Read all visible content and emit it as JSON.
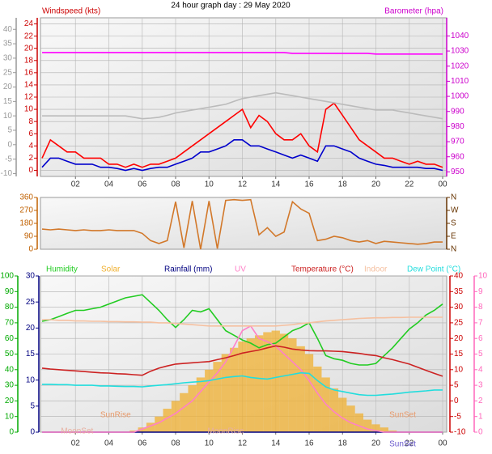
{
  "title": "24 hour graph day : 29 May 2020",
  "chart_data": [
    {
      "type": "line",
      "ylabel": "Windspeed (kts)",
      "y2label": "Barometer (hpa)",
      "x": [
        0,
        0.5,
        1,
        1.5,
        2,
        2.5,
        3,
        3.5,
        4,
        4.5,
        5,
        5.5,
        6,
        6.5,
        7,
        7.5,
        8,
        8.5,
        9,
        9.5,
        10,
        10.5,
        11,
        11.5,
        12,
        12.5,
        13,
        13.5,
        14,
        14.5,
        15,
        15.5,
        16,
        16.5,
        17,
        17.5,
        18,
        18.5,
        19,
        19.5,
        20,
        20.5,
        21,
        21.5,
        22,
        22.5,
        23,
        23.5,
        24
      ],
      "xlim": [
        0,
        24
      ],
      "xticks": [
        {
          "value": 2,
          "label": "02"
        },
        {
          "value": 4,
          "label": "04"
        },
        {
          "value": 6,
          "label": "06"
        },
        {
          "value": 8,
          "label": "08"
        },
        10,
        12,
        14,
        16,
        18,
        20,
        22,
        {
          "value": 24,
          "label": "00"
        }
      ],
      "ylim": [
        -1,
        25
      ],
      "yticks": [
        0,
        2,
        4,
        6,
        8,
        10,
        12,
        14,
        16,
        18,
        20,
        22,
        24
      ],
      "y3lim": [
        -11,
        44
      ],
      "y3ticks": [
        -10,
        -5,
        0,
        5,
        10,
        15,
        20,
        25,
        30,
        35,
        40
      ],
      "y2lim": [
        947,
        1052
      ],
      "y2ticks": [
        950,
        960,
        970,
        980,
        990,
        1000,
        1010,
        1020,
        1030,
        1040
      ],
      "axis_colors": {
        "y": "#cc0000",
        "y3": "#999999",
        "y2": "#cc00cc"
      },
      "grid": true,
      "series": [
        {
          "color": "#ff0000",
          "values": [
            2,
            5,
            4,
            3,
            3,
            2,
            2,
            2,
            1,
            1,
            0.5,
            1,
            0.5,
            1,
            1,
            1.5,
            2,
            3,
            4,
            5,
            6,
            7,
            8,
            9,
            10,
            7,
            9,
            8,
            6,
            5,
            5,
            6,
            4,
            3,
            10,
            11,
            9,
            7,
            5,
            4,
            3,
            2,
            2,
            1.5,
            1,
            1.5,
            1,
            1,
            0.5
          ]
        },
        {
          "color": "#0000cc",
          "values": [
            0.5,
            2,
            2,
            1.5,
            1,
            1,
            1,
            0.5,
            0.5,
            0.3,
            0,
            0.3,
            0,
            0.3,
            0.5,
            0.5,
            1,
            1.5,
            2,
            3,
            3,
            3.5,
            4,
            5,
            5,
            4,
            4,
            3.5,
            3,
            2.5,
            2,
            2.5,
            2,
            1.5,
            4,
            4,
            3.5,
            3,
            2,
            1.5,
            1,
            0.8,
            0.5,
            0.5,
            0.5,
            0.5,
            0.3,
            0.3,
            0
          ]
        },
        {
          "color": "#bbbbbb",
          "axis": "y3",
          "values": [
            10,
            10,
            10,
            10,
            10,
            10,
            10,
            10,
            10,
            10,
            10,
            9.5,
            9,
            9.2,
            9.5,
            10.2,
            11,
            11.5,
            12,
            12.5,
            13,
            13.5,
            14,
            15,
            16,
            16.5,
            17,
            17.5,
            18,
            17.5,
            17,
            16.5,
            16,
            15.5,
            15,
            14.5,
            14,
            13.5,
            13,
            12.5,
            12,
            12,
            12,
            11.5,
            11,
            10.5,
            10,
            9.5,
            9
          ]
        },
        {
          "color": "#ff00ff",
          "axis": "y2",
          "values": [
            1029,
            1029,
            1029,
            1029,
            1029,
            1029,
            1029,
            1029,
            1029,
            1029,
            1029,
            1029,
            1029,
            1029,
            1029,
            1029,
            1029,
            1029,
            1029,
            1029,
            1029,
            1029,
            1029,
            1029,
            1029,
            1029,
            1029,
            1029,
            1029,
            1029,
            1028.5,
            1028.5,
            1028.5,
            1028.5,
            1028.5,
            1028.5,
            1028.5,
            1028.5,
            1028.5,
            1028.5,
            1028,
            1028,
            1028,
            1028,
            1028,
            1028,
            1028,
            1028,
            1028
          ]
        }
      ]
    },
    {
      "type": "line",
      "x": [
        0,
        0.5,
        1,
        1.5,
        2,
        2.5,
        3,
        3.5,
        4,
        4.5,
        5,
        5.5,
        6,
        6.5,
        7,
        7.5,
        8,
        8.5,
        9,
        9.5,
        10,
        10.5,
        11,
        11.5,
        12,
        12.5,
        13,
        13.5,
        14,
        14.5,
        15,
        15.5,
        16,
        16.5,
        17,
        17.5,
        18,
        18.5,
        19,
        19.5,
        20,
        20.5,
        21,
        21.5,
        22,
        22.5,
        23,
        23.5,
        24
      ],
      "xlim": [
        0,
        24
      ],
      "ylim": [
        0,
        360
      ],
      "yticks": [
        0,
        90,
        180,
        270,
        360
      ],
      "y2lim": [
        0,
        360
      ],
      "y2ticks": [
        {
          "value": 0,
          "label": "N"
        },
        {
          "value": 90,
          "label": "E"
        },
        {
          "value": 180,
          "label": "S"
        },
        {
          "value": 270,
          "label": "W"
        },
        {
          "value": 360,
          "label": "N"
        }
      ],
      "axis_colors": {
        "y": "#c06000",
        "y2": "#663300"
      },
      "grid": false,
      "series": [
        {
          "color": "#d2782a",
          "values": [
            140,
            135,
            140,
            135,
            130,
            135,
            130,
            130,
            135,
            130,
            130,
            130,
            110,
            60,
            40,
            60,
            330,
            10,
            335,
            0,
            335,
            5,
            340,
            345,
            340,
            345,
            100,
            150,
            90,
            120,
            330,
            280,
            250,
            60,
            70,
            90,
            80,
            60,
            50,
            60,
            40,
            55,
            50,
            45,
            40,
            35,
            40,
            50,
            50
          ]
        }
      ]
    },
    {
      "type": "line",
      "x": [
        0,
        0.5,
        1,
        1.5,
        2,
        2.5,
        3,
        3.5,
        4,
        4.5,
        5,
        5.5,
        6,
        6.5,
        7,
        7.5,
        8,
        8.5,
        9,
        9.5,
        10,
        10.5,
        11,
        11.5,
        12,
        12.5,
        13,
        13.5,
        14,
        14.5,
        15,
        15.5,
        16,
        16.5,
        17,
        17.5,
        18,
        18.5,
        19,
        19.5,
        20,
        20.5,
        21,
        21.5,
        22,
        22.5,
        23,
        23.5,
        24
      ],
      "xlim": [
        0,
        24
      ],
      "xticks": [
        {
          "value": 2,
          "label": "02"
        },
        {
          "value": 4,
          "label": "04"
        },
        {
          "value": 6,
          "label": "06"
        },
        {
          "value": 8,
          "label": "08"
        },
        10,
        12,
        14,
        16,
        18,
        20,
        22,
        {
          "value": 24,
          "label": "00"
        }
      ],
      "ylim": [
        0,
        100
      ],
      "yticks": [
        0,
        10,
        20,
        30,
        40,
        50,
        60,
        70,
        80,
        90,
        100
      ],
      "y4lim": [
        0,
        30
      ],
      "y4ticks": [
        0,
        5,
        10,
        15,
        20,
        25,
        30
      ],
      "y2lim": [
        -10,
        40
      ],
      "y2ticks": [
        -10,
        -5,
        0,
        5,
        10,
        15,
        20,
        25,
        30,
        35,
        40
      ],
      "y3lim": [
        0,
        10
      ],
      "y3ticks": [
        0,
        1,
        2,
        3,
        4,
        5,
        6,
        7,
        8,
        9,
        10
      ],
      "axis_colors": {
        "y": "#00aa00",
        "y4": "#000080",
        "y2": "#cc0000",
        "y3": "#ff66bb"
      },
      "grid": true,
      "series": [
        {
          "name": "Humidity",
          "color": "#22cc22",
          "values": [
            71,
            72,
            74,
            76,
            78,
            78,
            79,
            80,
            82,
            84,
            86,
            87,
            88,
            83,
            78,
            72,
            67,
            72,
            78,
            77,
            79,
            72,
            65,
            62,
            59,
            57,
            54,
            56,
            57,
            61,
            65,
            67,
            70,
            60,
            49,
            47,
            46,
            44,
            43,
            43,
            44,
            49,
            54,
            60,
            66,
            70,
            75,
            78,
            82
          ]
        },
        {
          "name": "Solar",
          "color": "#f0b030",
          "fill": true,
          "values": [
            0,
            0,
            0,
            0,
            0,
            0,
            0,
            0,
            0,
            0,
            0,
            1,
            3,
            6,
            10,
            15,
            20,
            25,
            30,
            35,
            40,
            45,
            50,
            54,
            58,
            60,
            62,
            64,
            65,
            63,
            60,
            55,
            50,
            42,
            35,
            28,
            22,
            17,
            12,
            8,
            5,
            3,
            1,
            0,
            0,
            0,
            0,
            0,
            0
          ]
        },
        {
          "name": "Rainfall (mm)",
          "color": "#000080",
          "axis": "y4",
          "values": [
            0,
            0,
            0,
            0,
            0,
            0,
            0,
            0,
            0,
            0,
            0,
            0,
            0,
            0,
            0,
            0,
            0,
            0,
            0,
            0,
            0,
            0,
            0,
            0,
            0,
            0,
            0,
            0,
            0,
            0,
            0,
            0,
            0,
            0,
            0,
            0,
            0,
            0,
            0,
            0,
            0,
            0,
            0,
            0,
            0,
            0,
            0,
            0,
            0
          ]
        },
        {
          "name": "UV",
          "color": "#ff80c8",
          "axis": "y3",
          "values": [
            0,
            0,
            0,
            0,
            0,
            0,
            0,
            0,
            0,
            0,
            0,
            0,
            0.2,
            0.4,
            0.6,
            0.9,
            1.2,
            1.6,
            2,
            2.6,
            3.2,
            3.8,
            4.5,
            5.5,
            6.5,
            6.8,
            6,
            5.8,
            5.5,
            5,
            4.5,
            4,
            3.3,
            2.5,
            1.8,
            1.3,
            0.9,
            0.6,
            0.4,
            0.2,
            0.1,
            0,
            0,
            0,
            0,
            0,
            0,
            0,
            0
          ]
        },
        {
          "name": "Temperature (°C)",
          "color": "#cc2222",
          "axis": "y2",
          "values": [
            10.5,
            10.2,
            10,
            9.8,
            9.6,
            9.4,
            9.2,
            9,
            8.9,
            8.7,
            8.6,
            8.4,
            8.2,
            9.5,
            10.5,
            11.2,
            11.8,
            12,
            12.2,
            12.4,
            12.6,
            13.2,
            13.8,
            14.5,
            15.3,
            15.8,
            16.3,
            17,
            17.6,
            17.2,
            16.6,
            16.3,
            16.1,
            16,
            16,
            15.9,
            15.8,
            15.5,
            15.2,
            14.8,
            14.5,
            13.8,
            13.2,
            12.5,
            11.8,
            10.8,
            9.8,
            8.8,
            7.9
          ]
        },
        {
          "name": "Indoor",
          "color": "#f5c0a0",
          "axis": "y2",
          "values": [
            26,
            26,
            25.8,
            25.8,
            25.6,
            25.6,
            25.5,
            25.5,
            25.4,
            25.4,
            25.3,
            25.3,
            25.2,
            25.2,
            25,
            25,
            24.8,
            24.6,
            24.4,
            24.2,
            24,
            24,
            24,
            24,
            24,
            24,
            24,
            24,
            24,
            24.2,
            24.4,
            24.8,
            25,
            25.3,
            25.6,
            25.8,
            26,
            26.2,
            26.4,
            26.5,
            26.6,
            26.6,
            26.7,
            26.7,
            26.8,
            26.8,
            26.8,
            26.8,
            26.8
          ]
        },
        {
          "name": "Dew Point (°C)",
          "color": "#22dddd",
          "axis": "y2",
          "values": [
            5.3,
            5.3,
            5.2,
            5.2,
            5,
            5,
            5,
            4.8,
            4.8,
            4.7,
            4.6,
            4.6,
            4.5,
            4.8,
            5,
            5.2,
            5.5,
            5.8,
            6,
            6.2,
            6.5,
            7,
            7.5,
            7.8,
            8,
            7.5,
            7.2,
            7,
            7.5,
            8,
            8.5,
            9,
            8.8,
            6.5,
            4.5,
            3.5,
            3,
            2.5,
            2,
            1.8,
            1.8,
            2,
            2.2,
            2.5,
            2.8,
            3,
            3.2,
            3.5,
            3.5
          ]
        }
      ],
      "annotations": [
        {
          "text": "SunRise",
          "x": 4.4,
          "color": "#e89a6a"
        },
        {
          "text": "SunSet",
          "x": 21.6,
          "color": "#e89a6a"
        }
      ],
      "moon_annotations": [
        {
          "text": "MoonSet",
          "x": 2.1,
          "color": "#e8b0a0"
        },
        {
          "text": "MoonRise",
          "x": 11,
          "color": "#e8b0a0"
        }
      ],
      "axis_annotations": [
        {
          "text": "SunSet",
          "x": 21.6,
          "color": "#6a5acd"
        }
      ]
    }
  ]
}
